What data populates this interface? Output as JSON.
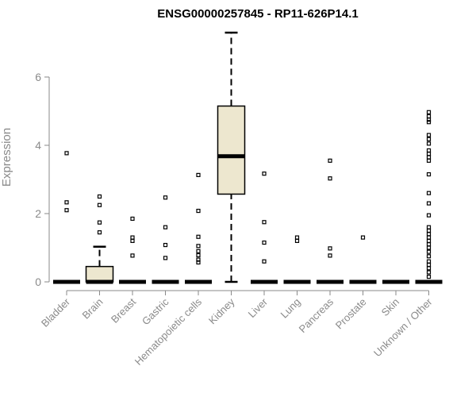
{
  "chart_data": {
    "type": "box",
    "title": "ENSG00000257845 - RP11-626P14.1",
    "xlabel": "",
    "ylabel": "Expression",
    "ylim": [
      0,
      7.25
    ],
    "yticks": [
      0,
      2,
      4,
      6
    ],
    "box_fill": "#ede7cf",
    "categories": [
      "Bladder",
      "Brain",
      "Breast",
      "Gastric",
      "Hematopoietic cells",
      "Kidney",
      "Liver",
      "Lung",
      "Pancreas",
      "Prostate",
      "Skin",
      "Unknown / Other"
    ],
    "boxes": [
      {
        "category": "Bladder",
        "min": 0,
        "q1": 0,
        "median": 0,
        "q3": 0,
        "max": 0,
        "outliers": [
          3.77,
          2.33,
          2.1
        ]
      },
      {
        "category": "Brain",
        "min": 0,
        "q1": 0,
        "median": 0,
        "q3": 0.45,
        "max": 1.03,
        "outliers": [
          2.5,
          2.25,
          1.74,
          1.45
        ]
      },
      {
        "category": "Breast",
        "min": 0,
        "q1": 0,
        "median": 0,
        "q3": 0,
        "max": 0,
        "outliers": [
          1.85,
          1.3,
          1.2,
          0.77
        ]
      },
      {
        "category": "Gastric",
        "min": 0,
        "q1": 0,
        "median": 0,
        "q3": 0,
        "max": 0,
        "outliers": [
          2.47,
          1.6,
          1.08,
          0.7
        ]
      },
      {
        "category": "Hematopoietic cells",
        "min": 0,
        "q1": 0,
        "median": 0,
        "q3": 0,
        "max": 0,
        "outliers": [
          3.13,
          2.08,
          1.32,
          1.05,
          0.9,
          0.78,
          0.65,
          0.57
        ]
      },
      {
        "category": "Kidney",
        "min": 0,
        "q1": 2.57,
        "median": 3.68,
        "q3": 5.15,
        "max": 7.3,
        "outliers": []
      },
      {
        "category": "Liver",
        "min": 0,
        "q1": 0,
        "median": 0,
        "q3": 0,
        "max": 0,
        "outliers": [
          3.17,
          1.75,
          1.15,
          0.6
        ]
      },
      {
        "category": "Lung",
        "min": 0,
        "q1": 0,
        "median": 0,
        "q3": 0,
        "max": 0,
        "outliers": [
          1.3,
          1.2
        ]
      },
      {
        "category": "Pancreas",
        "min": 0,
        "q1": 0,
        "median": 0,
        "q3": 0,
        "max": 0,
        "outliers": [
          3.55,
          3.03,
          0.98,
          0.77
        ]
      },
      {
        "category": "Prostate",
        "min": 0,
        "q1": 0,
        "median": 0,
        "q3": 0,
        "max": 0,
        "outliers": [
          1.3
        ]
      },
      {
        "category": "Skin",
        "min": 0,
        "q1": 0,
        "median": 0,
        "q3": 0,
        "max": 0,
        "outliers": []
      },
      {
        "category": "Unknown / Other",
        "min": 0,
        "q1": 0,
        "median": 0,
        "q3": 0,
        "max": 0,
        "outliers": [
          4.97,
          4.85,
          4.75,
          4.68,
          4.3,
          4.18,
          4.05,
          3.85,
          3.75,
          3.65,
          3.55,
          3.15,
          2.6,
          2.3,
          1.95,
          1.6,
          1.5,
          1.4,
          1.3,
          1.2,
          1.1,
          1.0,
          0.88,
          0.75,
          0.6,
          0.5,
          0.4,
          0.28,
          0.15
        ]
      }
    ]
  }
}
